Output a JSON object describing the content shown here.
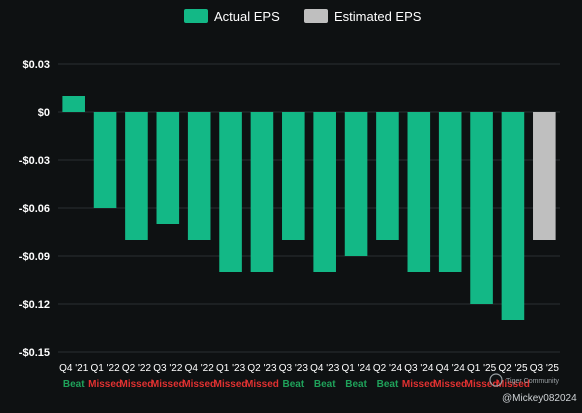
{
  "chart_data": {
    "type": "bar",
    "categories": [
      "Q4 '21",
      "Q1 '22",
      "Q2 '22",
      "Q3 '22",
      "Q4 '22",
      "Q1 '23",
      "Q2 '23",
      "Q3 '23",
      "Q4 '23",
      "Q1 '24",
      "Q2 '24",
      "Q3 '24",
      "Q4 '24",
      "Q1 '25",
      "Q2 '25",
      "Q3 '25"
    ],
    "series": [
      {
        "name": "Actual EPS",
        "color": "#13b886",
        "values": [
          0.01,
          -0.06,
          -0.08,
          -0.07,
          -0.08,
          -0.1,
          -0.1,
          -0.08,
          -0.1,
          -0.09,
          -0.08,
          -0.1,
          -0.1,
          -0.12,
          -0.13,
          null
        ]
      },
      {
        "name": "Estimated EPS",
        "color": "#bfbfbf",
        "values": [
          null,
          null,
          null,
          null,
          null,
          null,
          null,
          null,
          null,
          null,
          null,
          null,
          null,
          null,
          null,
          -0.08
        ]
      }
    ],
    "status": [
      "Beat",
      "Missed",
      "Missed",
      "Missed",
      "Missed",
      "Missed",
      "Missed",
      "Beat",
      "Beat",
      "Beat",
      "Beat",
      "Missed",
      "Missed",
      "Missed",
      "Missed",
      ""
    ],
    "status_colors": {
      "Beat": "#1fa25a",
      "Missed": "#e03131"
    },
    "yticks": [
      0.03,
      0,
      -0.03,
      -0.06,
      -0.09,
      -0.12,
      -0.15
    ],
    "ytick_labels": [
      "$0.03",
      "$0",
      "-$0.03",
      "-$0.06",
      "-$0.09",
      "-$0.12",
      "-$0.15"
    ],
    "ylim": [
      -0.15,
      0.03
    ],
    "grid": true,
    "legend_position": "top-center"
  },
  "watermark": {
    "brand": "Tiger Community",
    "handle": "@Mickey082024"
  }
}
